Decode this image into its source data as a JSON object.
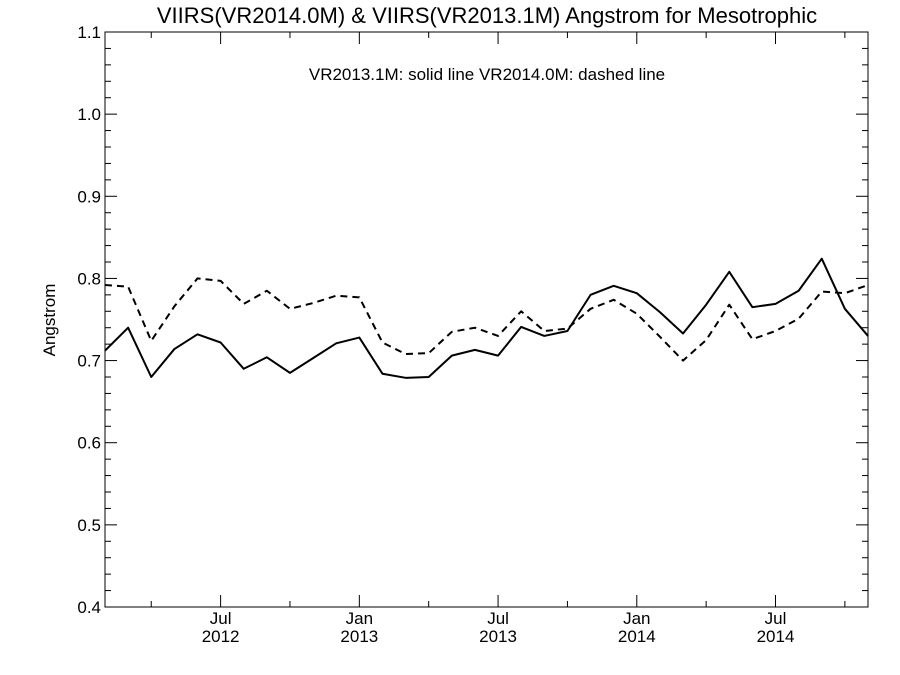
{
  "chart_data": {
    "type": "line",
    "title": "VIIRS(VR2014.0M) & VIIRS(VR2013.1M)  Angstrom for Mesotrophic",
    "annotation": "VR2013.1M: solid line   VR2014.0M: dashed line",
    "xlabel": "",
    "ylabel": "Angstrom",
    "ylim": [
      0.4,
      1.1
    ],
    "xlim": [
      "2012-02",
      "2014-11"
    ],
    "yticks": [
      "0.4",
      "0.5",
      "0.6",
      "0.7",
      "0.8",
      "0.9",
      "1.0",
      "1.1"
    ],
    "xticks": [
      {
        "x": "2012-07",
        "month": "Jul",
        "year": "2012"
      },
      {
        "x": "2013-01",
        "month": "Jan",
        "year": "2013"
      },
      {
        "x": "2013-07",
        "month": "Jul",
        "year": "2013"
      },
      {
        "x": "2014-01",
        "month": "Jan",
        "year": "2014"
      },
      {
        "x": "2014-07",
        "month": "Jul",
        "year": "2014"
      }
    ],
    "x": [
      "2012-02",
      "2012-03",
      "2012-04",
      "2012-05",
      "2012-06",
      "2012-07",
      "2012-08",
      "2012-09",
      "2012-10",
      "2012-11",
      "2012-12",
      "2013-01",
      "2013-02",
      "2013-03",
      "2013-04",
      "2013-05",
      "2013-06",
      "2013-07",
      "2013-08",
      "2013-09",
      "2013-10",
      "2013-11",
      "2013-12",
      "2014-01",
      "2014-02",
      "2014-03",
      "2014-04",
      "2014-05",
      "2014-06",
      "2014-07",
      "2014-08",
      "2014-09",
      "2014-10",
      "2014-11"
    ],
    "series": [
      {
        "name": "VR2013.1M",
        "style": "solid",
        "color": "#000000",
        "values": [
          0.712,
          0.74,
          0.68,
          0.714,
          0.732,
          0.722,
          0.69,
          0.704,
          0.685,
          0.703,
          0.721,
          0.728,
          0.684,
          0.679,
          0.68,
          0.706,
          0.713,
          0.706,
          0.741,
          0.73,
          0.736,
          0.78,
          0.791,
          0.782,
          0.759,
          0.733,
          0.768,
          0.808,
          0.765,
          0.769,
          0.785,
          0.824,
          0.763,
          0.73
        ]
      },
      {
        "name": "VR2014.0M",
        "style": "dashed",
        "color": "#000000",
        "values": [
          0.792,
          0.79,
          0.724,
          0.766,
          0.8,
          0.797,
          0.769,
          0.785,
          0.763,
          0.77,
          0.779,
          0.777,
          0.722,
          0.708,
          0.709,
          0.735,
          0.74,
          0.73,
          0.76,
          0.736,
          0.739,
          0.763,
          0.774,
          0.757,
          0.729,
          0.7,
          0.725,
          0.768,
          0.726,
          0.736,
          0.751,
          0.784,
          0.782,
          0.792
        ]
      }
    ],
    "grid": false,
    "legend": "none"
  }
}
